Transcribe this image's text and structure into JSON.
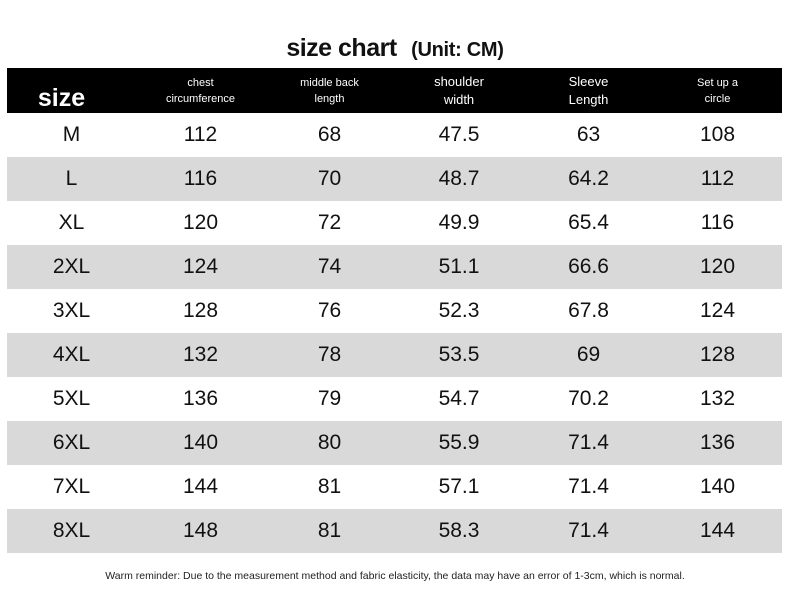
{
  "title": {
    "main": "size chart",
    "unit": "(Unit: CM)"
  },
  "headers": {
    "size": "size",
    "chest": [
      "chest",
      "circumference"
    ],
    "middle_back": [
      "middle back",
      "length"
    ],
    "shoulder": [
      "shoulder",
      "width"
    ],
    "sleeve": [
      "Sleeve",
      "Length"
    ],
    "setup": [
      "Set up a",
      "circle"
    ]
  },
  "rows": [
    {
      "size": "M",
      "chest": "112",
      "back": "68",
      "shoulder": "47.5",
      "sleeve": "63",
      "circle": "108"
    },
    {
      "size": "L",
      "chest": "116",
      "back": "70",
      "shoulder": "48.7",
      "sleeve": "64.2",
      "circle": "112"
    },
    {
      "size": "XL",
      "chest": "120",
      "back": "72",
      "shoulder": "49.9",
      "sleeve": "65.4",
      "circle": "116"
    },
    {
      "size": "2XL",
      "chest": "124",
      "back": "74",
      "shoulder": "51.1",
      "sleeve": "66.6",
      "circle": "120"
    },
    {
      "size": "3XL",
      "chest": "128",
      "back": "76",
      "shoulder": "52.3",
      "sleeve": "67.8",
      "circle": "124"
    },
    {
      "size": "4XL",
      "chest": "132",
      "back": "78",
      "shoulder": "53.5",
      "sleeve": "69",
      "circle": "128"
    },
    {
      "size": "5XL",
      "chest": "136",
      "back": "79",
      "shoulder": "54.7",
      "sleeve": "70.2",
      "circle": "132"
    },
    {
      "size": "6XL",
      "chest": "140",
      "back": "80",
      "shoulder": "55.9",
      "sleeve": "71.4",
      "circle": "136"
    },
    {
      "size": "7XL",
      "chest": "144",
      "back": "81",
      "shoulder": "57.1",
      "sleeve": "71.4",
      "circle": "140"
    },
    {
      "size": "8XL",
      "chest": "148",
      "back": "81",
      "shoulder": "58.3",
      "sleeve": "71.4",
      "circle": "144"
    }
  ],
  "footer": "Warm reminder: Due to the measurement method and fabric elasticity, the data may have an error of 1-3cm, which is normal.",
  "colors": {
    "header_bg": "#000000",
    "header_text": "#ffffff",
    "stripe": "#d9d9d9",
    "row_bg": "#ffffff"
  }
}
